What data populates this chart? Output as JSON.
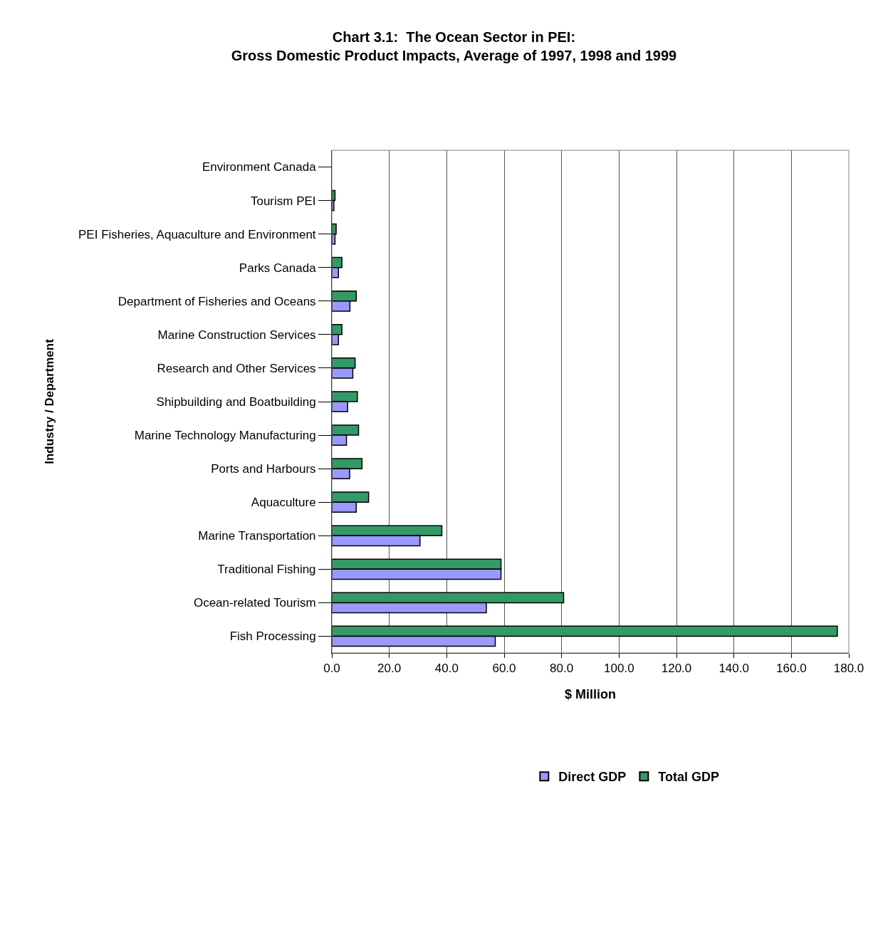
{
  "chart_data": {
    "type": "bar",
    "orientation": "horizontal",
    "title": "Chart 3.1:  The Ocean Sector in PEI:\nGross Domestic Product Impacts, Average of 1997, 1998 and 1999",
    "xlabel": "$ Million",
    "ylabel": "Industry / Department",
    "categories": [
      "Environment Canada",
      "Tourism PEI",
      "PEI Fisheries, Aquaculture and Environment",
      "Parks Canada",
      "Department of Fisheries and Oceans",
      "Marine Construction Services",
      "Research and Other Services",
      "Shipbuilding and Boatbuilding",
      "Marine Technology Manufacturing",
      "Ports and Harbours",
      "Aquaculture",
      "Marine Transportation",
      "Traditional Fishing",
      "Ocean-related Tourism",
      "Fish Processing"
    ],
    "series": [
      {
        "name": "Direct GDP",
        "color": "#9999ff",
        "values": [
          null,
          0.7,
          1.1,
          2.3,
          6.3,
          2.3,
          7.3,
          5.5,
          5.1,
          6.2,
          8.5,
          30.7,
          58.9,
          53.8,
          56.9
        ]
      },
      {
        "name": "Total GDP",
        "color": "#339966",
        "values": [
          null,
          1.1,
          1.5,
          3.5,
          8.5,
          3.5,
          8.1,
          8.9,
          9.3,
          10.5,
          12.8,
          38.3,
          58.9,
          80.7,
          176
        ]
      }
    ],
    "xlim": [
      0,
      180
    ],
    "xticks": [
      {
        "value": 0,
        "label": "0.0"
      },
      {
        "value": 20,
        "label": "20.0"
      },
      {
        "value": 40,
        "label": "40.0"
      },
      {
        "value": 60,
        "label": "60.0"
      },
      {
        "value": 80,
        "label": "80.0"
      },
      {
        "value": 100,
        "label": "100.0"
      },
      {
        "value": 120,
        "label": "120.0"
      },
      {
        "value": 140,
        "label": "140.0"
      },
      {
        "value": 160,
        "label": "160.0"
      },
      {
        "value": 180,
        "label": "180.0"
      }
    ],
    "grid": "x",
    "legend": "bottom"
  }
}
